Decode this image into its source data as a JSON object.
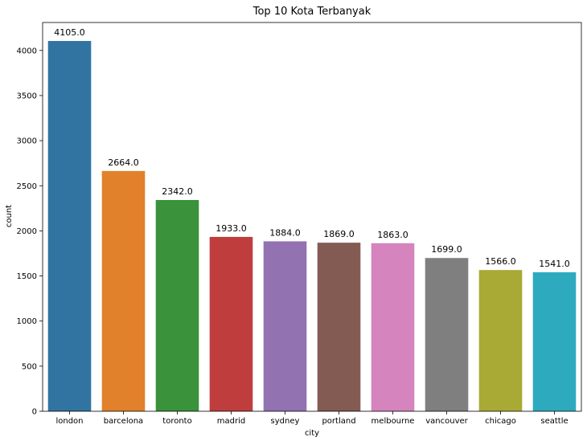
{
  "chart_data": {
    "type": "bar",
    "title": "Top 10 Kota Terbanyak",
    "xlabel": "city",
    "ylabel": "count",
    "categories": [
      "london",
      "barcelona",
      "toronto",
      "madrid",
      "sydney",
      "portland",
      "melbourne",
      "vancouver",
      "chicago",
      "seattle"
    ],
    "values": [
      4105.0,
      2664.0,
      2342.0,
      1933.0,
      1884.0,
      1869.0,
      1863.0,
      1699.0,
      1566.0,
      1541.0
    ],
    "value_labels": [
      "4105.0",
      "2664.0",
      "2342.0",
      "1933.0",
      "1884.0",
      "1869.0",
      "1863.0",
      "1699.0",
      "1566.0",
      "1541.0"
    ],
    "colors": [
      "#3274a1",
      "#e1812c",
      "#3a923a",
      "#c03d3e",
      "#9372b2",
      "#845b53",
      "#d684bd",
      "#7f7f7f",
      "#a9aa35",
      "#2eaabf"
    ],
    "yticks": [
      0,
      500,
      1000,
      1500,
      2000,
      2500,
      3000,
      3500,
      4000
    ],
    "ylim": [
      0,
      4310
    ],
    "grid": false,
    "legend": "none"
  }
}
